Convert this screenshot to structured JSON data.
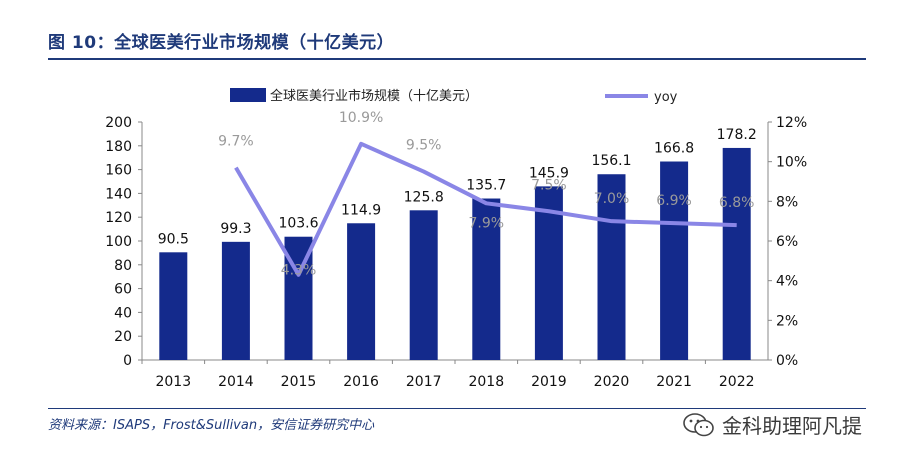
{
  "header": {
    "title": "图 10：全球医美行业市场规模（十亿美元）"
  },
  "footer": {
    "source": "资料来源：ISAPS，Frost&Sullivan，安信证券研究中心",
    "watermark": "金科助理阿凡提"
  },
  "colors": {
    "bar": "#142a8c",
    "line": "#8a86e6",
    "rate_label": "#9a9a9a",
    "rule": "#1f3a7a"
  },
  "chart_data": {
    "type": "bar+line",
    "categories": [
      "2013",
      "2014",
      "2015",
      "2016",
      "2017",
      "2018",
      "2019",
      "2020",
      "2021",
      "2022"
    ],
    "series": [
      {
        "name": "全球医美行业市场规模（十亿美元）",
        "type": "bar",
        "axis": "left",
        "values": [
          90.5,
          99.3,
          103.6,
          114.9,
          125.8,
          135.7,
          145.9,
          156.1,
          166.8,
          178.2
        ],
        "labels": [
          "90.5",
          "99.3",
          "103.6",
          "114.9",
          "125.8",
          "135.7",
          "145.9",
          "156.1",
          "166.8",
          "178.2"
        ]
      },
      {
        "name": "yoy",
        "type": "line",
        "axis": "right",
        "values": [
          null,
          9.7,
          4.3,
          10.9,
          9.5,
          7.9,
          7.5,
          7.0,
          6.9,
          6.8
        ],
        "labels": [
          "",
          "9.7%",
          "4.3%",
          "10.9%",
          "9.5%",
          "7.9%",
          "7.5%",
          "7.0%",
          "6.9%",
          "6.8%"
        ]
      }
    ],
    "left_axis": {
      "min": 0,
      "max": 200,
      "step": 20,
      "ticks": [
        "0",
        "20",
        "40",
        "60",
        "80",
        "100",
        "120",
        "140",
        "160",
        "180",
        "200"
      ]
    },
    "right_axis": {
      "min": 0,
      "max": 12,
      "step": 2,
      "ticks": [
        "0%",
        "2%",
        "4%",
        "6%",
        "8%",
        "10%",
        "12%"
      ]
    },
    "legend": {
      "placement": "top"
    }
  }
}
